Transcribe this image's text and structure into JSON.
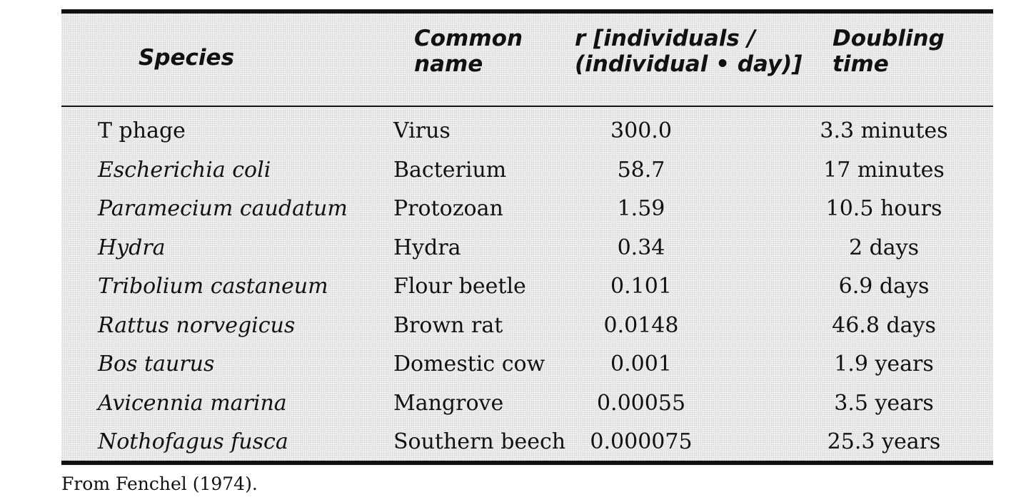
{
  "table": {
    "headers": {
      "species": "Species",
      "common_name": "Common\nname",
      "r": "r [individuals /\n(individual • day)]",
      "doubling_time": "Doubling\ntime"
    },
    "rows": [
      {
        "species": "T phage",
        "italic": false,
        "common_name": "Virus",
        "r": "300.0",
        "doubling_time": "3.3 minutes"
      },
      {
        "species": "Escherichia coli",
        "italic": true,
        "common_name": "Bacterium",
        "r": "58.7",
        "doubling_time": "17 minutes"
      },
      {
        "species": "Paramecium caudatum",
        "italic": true,
        "common_name": "Protozoan",
        "r": "1.59",
        "doubling_time": "10.5 hours"
      },
      {
        "species": "Hydra",
        "italic": true,
        "common_name": "Hydra",
        "r": "0.34",
        "doubling_time": "2 days"
      },
      {
        "species": "Tribolium castaneum",
        "italic": true,
        "common_name": "Flour beetle",
        "r": "0.101",
        "doubling_time": "6.9 days"
      },
      {
        "species": "Rattus norvegicus",
        "italic": true,
        "common_name": "Brown rat",
        "r": "0.0148",
        "doubling_time": "46.8 days"
      },
      {
        "species": "Bos taurus",
        "italic": true,
        "common_name": "Domestic cow",
        "r": "0.001",
        "doubling_time": "1.9 years"
      },
      {
        "species": "Avicennia marina",
        "italic": true,
        "common_name": "Mangrove",
        "r": "0.00055",
        "doubling_time": "3.5 years"
      },
      {
        "species": "Nothofagus fusca",
        "italic": true,
        "common_name": "Southern beech",
        "r": "0.000075",
        "doubling_time": "25.3 years"
      }
    ]
  },
  "source_note": "From Fenchel (1974).",
  "colors": {
    "panel_background": "#ececec",
    "rule": "#111111",
    "text": "#111111"
  }
}
